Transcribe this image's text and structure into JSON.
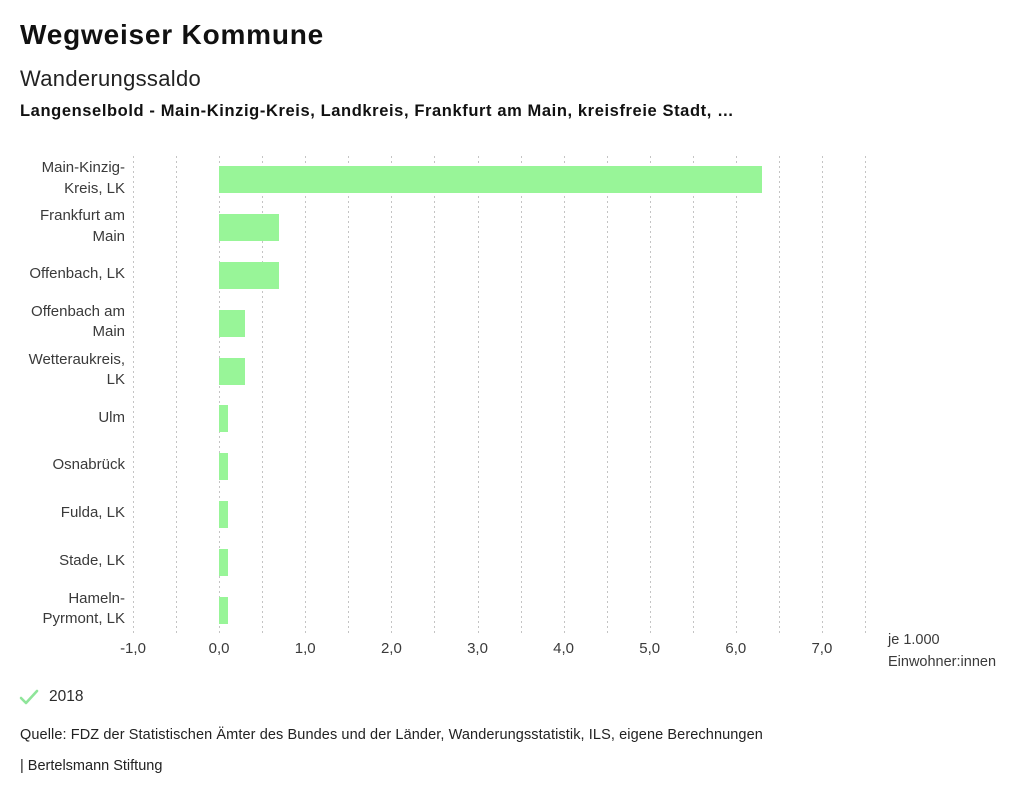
{
  "header": {
    "app_title": "Wegweiser Kommune",
    "chart_title": "Wanderungssaldo",
    "chart_subtitle": "Langenselbold - Main-Kinzig-Kreis, Landkreis, Frankfurt am Main, kreisfreie Stadt, …"
  },
  "chart_data": {
    "type": "bar",
    "orientation": "horizontal",
    "title": "Wanderungssaldo",
    "categories": [
      "Main-Kinzig-Kreis, LK",
      "Frankfurt am Main",
      "Offenbach, LK",
      "Offenbach am Main",
      "Wetteraukreis, LK",
      "Ulm",
      "Osnabrück",
      "Fulda, LK",
      "Stade, LK",
      "Hameln-Pyrmont, LK"
    ],
    "category_label_lines": [
      [
        "Main-Kinzig-",
        "Kreis, LK"
      ],
      [
        "Frankfurt am",
        "Main"
      ],
      [
        "Offenbach, LK"
      ],
      [
        "Offenbach am",
        "Main"
      ],
      [
        "Wetteraukreis,",
        "LK"
      ],
      [
        "Ulm"
      ],
      [
        "Osnabrück"
      ],
      [
        "Fulda, LK"
      ],
      [
        "Stade, LK"
      ],
      [
        "Hameln-",
        "Pyrmont, LK"
      ]
    ],
    "series": [
      {
        "name": "2018",
        "values": [
          6.3,
          0.7,
          0.7,
          0.3,
          0.3,
          0.1,
          0.1,
          0.1,
          0.1,
          0.1
        ]
      }
    ],
    "xlim": [
      -1.0,
      7.5
    ],
    "gridline_step": 0.5,
    "grid": true,
    "x_tick_values": [
      -1,
      0,
      1,
      2,
      3,
      4,
      5,
      6,
      7
    ],
    "x_tick_labels": [
      "-1,0",
      "0,0",
      "1,0",
      "2,0",
      "3,0",
      "4,0",
      "5,0",
      "6,0",
      "7,0"
    ],
    "unit_label_lines": [
      "je 1.000",
      "Einwohner:innen"
    ],
    "bar_color": "#98F598",
    "gridline_color": "#c4c4c4",
    "legend_position": "bottom-left"
  },
  "legend": {
    "year": "2018",
    "check_color": "#8FE59A"
  },
  "footer": {
    "source": "Quelle: FDZ der Statistischen Ämter des Bundes und der Länder, Wanderungsstatistik, ILS, eigene Berechnungen",
    "branding": "| Bertelsmann Stiftung"
  }
}
